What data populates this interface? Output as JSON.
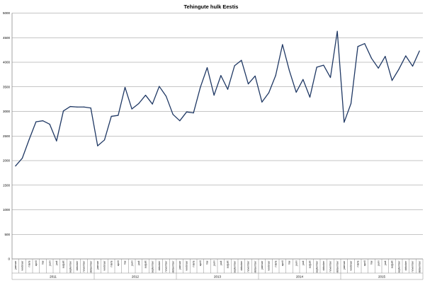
{
  "chart_data": {
    "type": "line",
    "title": "Tehingute hulk Eestis",
    "xlabel": "",
    "ylabel": "",
    "ylim": [
      0,
      5000
    ],
    "yticks": [
      0,
      500,
      1000,
      1500,
      2000,
      2500,
      3000,
      3500,
      4000,
      4500,
      5000
    ],
    "grid": true,
    "years": [
      "2011",
      "2012",
      "2013",
      "2014",
      "2015"
    ],
    "months": [
      "jaanuar",
      "veebruar",
      "märts",
      "aprill",
      "mai",
      "juuni",
      "juuli",
      "august",
      "september",
      "oktoober",
      "november",
      "detsember"
    ],
    "series": [
      {
        "color": "#1f3864",
        "values": [
          1890,
          2050,
          2430,
          2790,
          2810,
          2740,
          2400,
          3010,
          3100,
          3090,
          3090,
          3070,
          2300,
          2420,
          2900,
          2920,
          3490,
          3050,
          3160,
          3330,
          3150,
          3510,
          3310,
          2940,
          2810,
          2990,
          2970,
          3490,
          3890,
          3330,
          3730,
          3450,
          3930,
          4040,
          3560,
          3720,
          3190,
          3380,
          3730,
          4360,
          3830,
          3390,
          3650,
          3290,
          3900,
          3940,
          3690,
          4630,
          2780,
          3160,
          4320,
          4380,
          4080,
          3880,
          4120,
          3630,
          3860,
          4130,
          3920,
          4230
        ]
      }
    ]
  }
}
